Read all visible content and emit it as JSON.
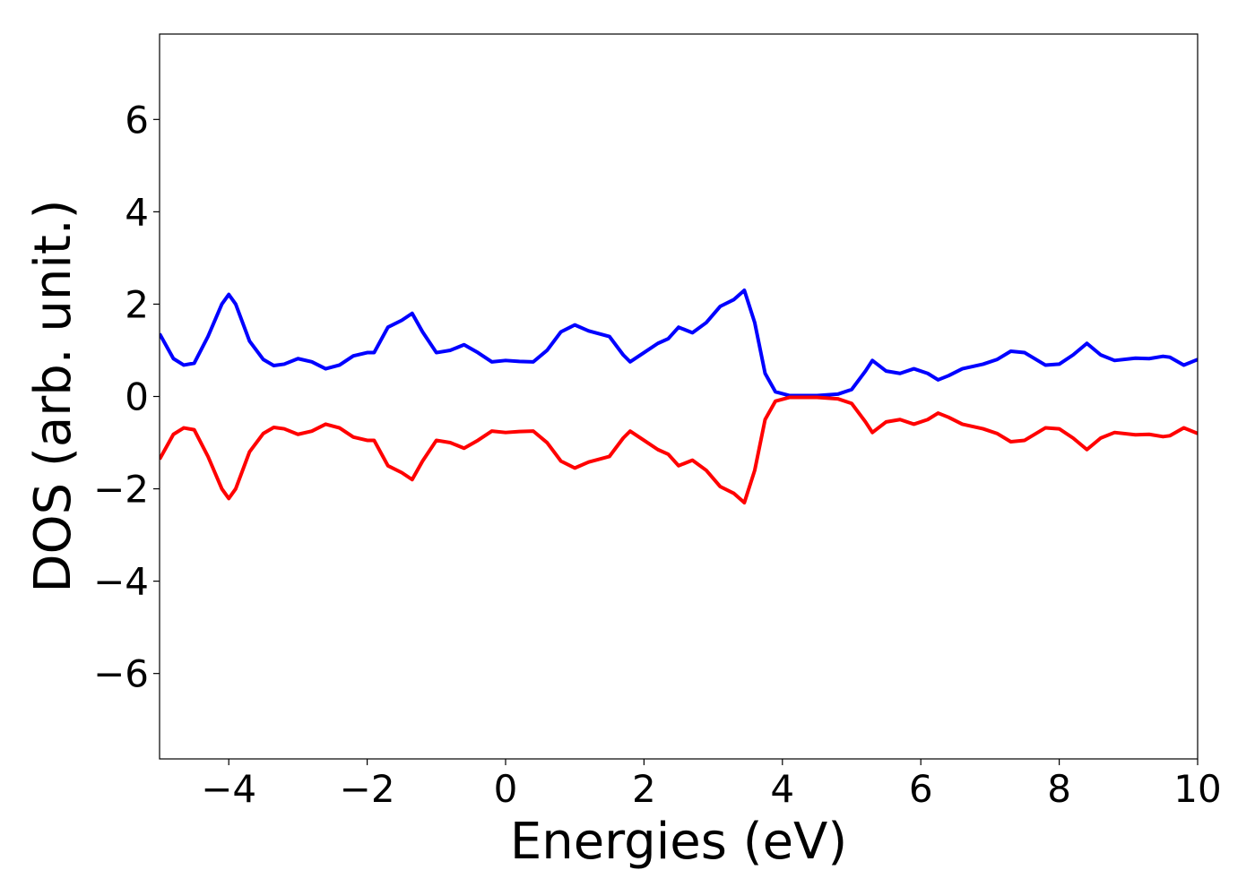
{
  "chart_data": {
    "type": "line",
    "x_label": "Energies (eV)",
    "y_label": "DOS (arb. unit.)",
    "xlim": [
      -5,
      10
    ],
    "ylim": [
      -7.85,
      7.85
    ],
    "xticks": [
      {
        "value": -4,
        "label": "−4"
      },
      {
        "value": -2,
        "label": "−2"
      },
      0,
      2,
      4,
      6,
      8,
      10
    ],
    "yticks": [
      {
        "value": -6,
        "label": "−6"
      },
      {
        "value": -4,
        "label": "−4"
      },
      {
        "value": -2,
        "label": "−2"
      },
      0,
      2,
      4,
      6
    ],
    "grid": false,
    "x": [
      -5,
      -4.8,
      -4.65,
      -4.5,
      -4.3,
      -4.1,
      -4.0,
      -3.9,
      -3.7,
      -3.5,
      -3.35,
      -3.2,
      -3.0,
      -2.8,
      -2.6,
      -2.4,
      -2.2,
      -2.0,
      -1.9,
      -1.7,
      -1.5,
      -1.35,
      -1.2,
      -1.0,
      -0.8,
      -0.6,
      -0.4,
      -0.2,
      0,
      0.2,
      0.4,
      0.6,
      0.8,
      1.0,
      1.2,
      1.5,
      1.7,
      1.8,
      2.0,
      2.2,
      2.35,
      2.5,
      2.7,
      2.9,
      3.1,
      3.3,
      3.45,
      3.6,
      3.75,
      3.9,
      4.1,
      4.5,
      4.8,
      5.0,
      5.2,
      5.3,
      5.5,
      5.7,
      5.9,
      6.1,
      6.25,
      6.4,
      6.6,
      6.9,
      7.1,
      7.3,
      7.5,
      7.8,
      8.0,
      8.2,
      8.4,
      8.6,
      8.8,
      9.1,
      9.3,
      9.5,
      9.6,
      9.8,
      10
    ],
    "series": [
      {
        "color": "#0000ff",
        "values": [
          1.36,
          0.82,
          0.68,
          0.72,
          1.3,
          2.0,
          2.21,
          2.0,
          1.2,
          0.8,
          0.67,
          0.7,
          0.82,
          0.75,
          0.6,
          0.68,
          0.88,
          0.95,
          0.95,
          1.5,
          1.65,
          1.8,
          1.4,
          0.95,
          1.0,
          1.12,
          0.95,
          0.75,
          0.78,
          0.76,
          0.75,
          1.0,
          1.4,
          1.55,
          1.42,
          1.3,
          0.9,
          0.75,
          0.95,
          1.15,
          1.25,
          1.5,
          1.38,
          1.6,
          1.95,
          2.1,
          2.3,
          1.6,
          0.5,
          0.1,
          0.02,
          0.02,
          0.05,
          0.15,
          0.55,
          0.78,
          0.55,
          0.5,
          0.6,
          0.5,
          0.36,
          0.45,
          0.6,
          0.7,
          0.8,
          0.98,
          0.95,
          0.68,
          0.7,
          0.9,
          1.15,
          0.9,
          0.78,
          0.83,
          0.82,
          0.87,
          0.85,
          0.68,
          0.8
        ]
      },
      {
        "color": "#ff0000",
        "values": [
          -1.36,
          -0.82,
          -0.68,
          -0.72,
          -1.3,
          -2.0,
          -2.21,
          -2.0,
          -1.2,
          -0.8,
          -0.67,
          -0.7,
          -0.82,
          -0.75,
          -0.6,
          -0.68,
          -0.88,
          -0.95,
          -0.95,
          -1.5,
          -1.65,
          -1.8,
          -1.4,
          -0.95,
          -1.0,
          -1.12,
          -0.95,
          -0.75,
          -0.78,
          -0.76,
          -0.75,
          -1.0,
          -1.4,
          -1.55,
          -1.42,
          -1.3,
          -0.9,
          -0.75,
          -0.95,
          -1.15,
          -1.25,
          -1.5,
          -1.38,
          -1.6,
          -1.95,
          -2.1,
          -2.3,
          -1.6,
          -0.5,
          -0.1,
          -0.02,
          -0.02,
          -0.05,
          -0.15,
          -0.55,
          -0.78,
          -0.55,
          -0.5,
          -0.6,
          -0.5,
          -0.36,
          -0.45,
          -0.6,
          -0.7,
          -0.8,
          -0.98,
          -0.95,
          -0.68,
          -0.7,
          -0.9,
          -1.15,
          -0.9,
          -0.78,
          -0.83,
          -0.82,
          -0.87,
          -0.85,
          -0.68,
          -0.8
        ]
      }
    ]
  }
}
